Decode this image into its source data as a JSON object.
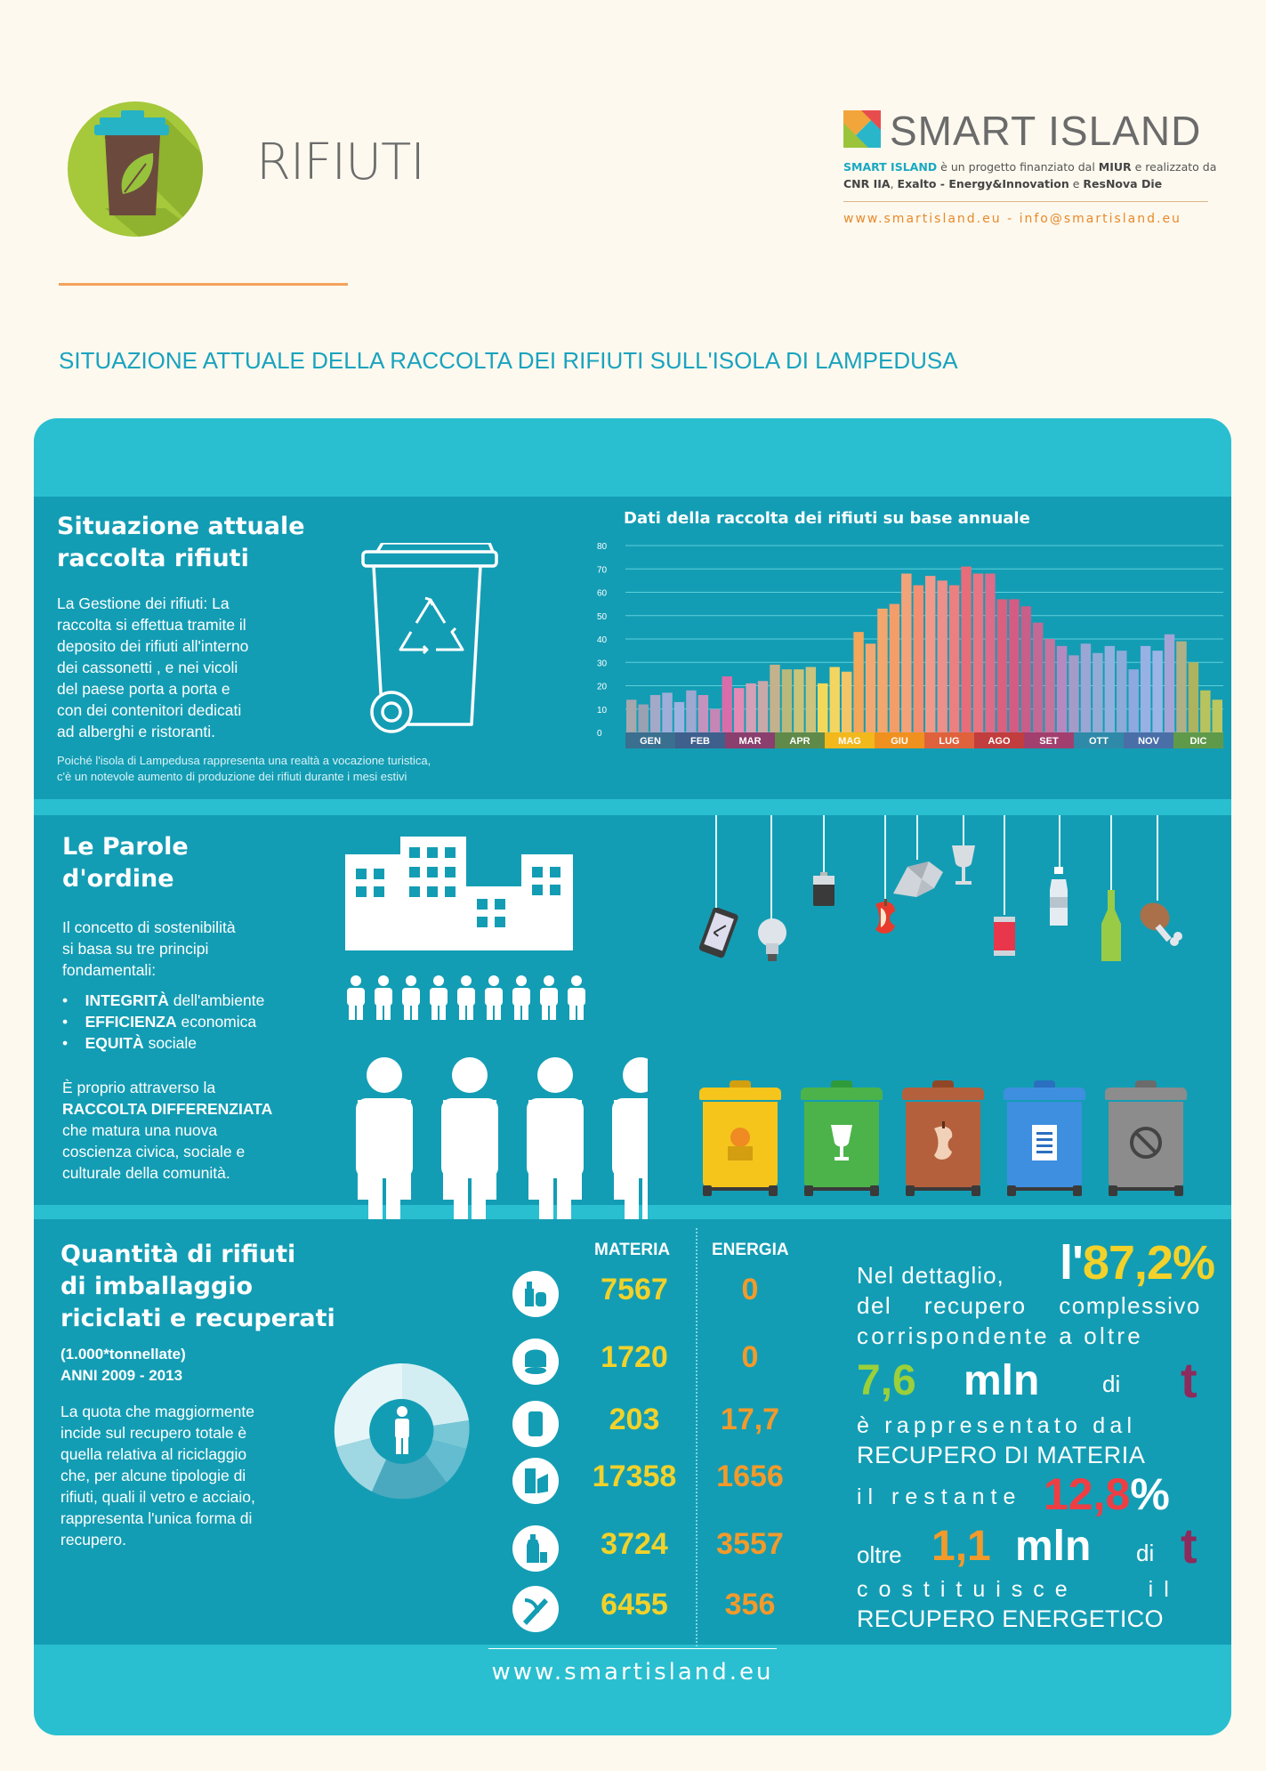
{
  "header": {
    "title": "RIFIUTI",
    "brand_name": "SMART ISLAND",
    "brand_desc_1": "SMART ISLAND",
    "brand_desc_2": " è un progetto finanziato dal ",
    "brand_desc_3": "MIUR",
    "brand_desc_4": " e realizzato da",
    "brand_desc_5": "CNR IIA",
    "brand_desc_6": ", ",
    "brand_desc_7": "Exalto - Energy&Innovation",
    "brand_desc_8": " e ",
    "brand_desc_9": "ResNova Die",
    "brand_web": "www.smartisland.eu  -  info@smartisland.eu",
    "subtitle": "SITUAZIONE ATTUALE DELLA RACCOLTA DEI RIFIUTI SULL'ISOLA DI LAMPEDUSA"
  },
  "section1": {
    "title_1": "Situazione attuale",
    "title_2": "raccolta rifiuti",
    "para": [
      "La Gestione dei rifiuti: La",
      "raccolta si effettua tramite il",
      "deposito dei rifiuti all'interno",
      "dei cassonetti , e nei vicoli",
      "del paese porta a porta e",
      "con dei contenitori dedicati",
      "ad alberghi e ristoranti."
    ],
    "note_1": "Poiché l'isola di Lampedusa rappresenta una realtà a vocazione turistica,",
    "note_2": "c'è un notevole aumento di produzione dei rifiuti durante i mesi estivi"
  },
  "chart_data": {
    "type": "bar",
    "title": "Dati della raccolta dei rifiuti su base annuale",
    "ylim": [
      0,
      80
    ],
    "yticks": [
      "0",
      "10",
      "20",
      "30",
      "40",
      "50",
      "60",
      "70",
      "80"
    ],
    "months": [
      "GEN",
      "FEB",
      "MAR",
      "APR",
      "MAG",
      "GIU",
      "LUG",
      "AGO",
      "SET",
      "OTT",
      "NOV",
      "DIC"
    ],
    "month_colors": [
      "#3a6f8f",
      "#3f5f8c",
      "#8a3f6e",
      "#5f8a4a",
      "#f2b81c",
      "#f0901f",
      "#e0623c",
      "#c23d3d",
      "#a23f6e",
      "#2e8aa8",
      "#4a6fa8",
      "#5f9a4a"
    ],
    "values": [
      14,
      12,
      16,
      17,
      13,
      18,
      16,
      10,
      24,
      19,
      21,
      22,
      29,
      27,
      27,
      28,
      21,
      28,
      26,
      43,
      38,
      53,
      55,
      68,
      63,
      67,
      65,
      63,
      71,
      68,
      68,
      57,
      57,
      54,
      47,
      40,
      37,
      33,
      38,
      34,
      37,
      35,
      27,
      37,
      35,
      42,
      39,
      30,
      18,
      14
    ],
    "bar_colors": [
      "#a7a7ae",
      "#9aa1b3",
      "#a4a9c8",
      "#9eaed8",
      "#9fb3e0",
      "#9ea8d0",
      "#c493bd",
      "#c586b5",
      "#d86da9",
      "#e48ab5",
      "#d3a1b6",
      "#c9a8a8",
      "#c4b28c",
      "#b8b97a",
      "#c9c47a",
      "#ccc37d",
      "#f3d85a",
      "#f4d561",
      "#f2c569",
      "#f3a75a",
      "#f2a870",
      "#f4a76d",
      "#f39d6b",
      "#f3a37a",
      "#f48f72",
      "#f19a8a",
      "#ed8f8a",
      "#ec7f80",
      "#e86d7a",
      "#e87584",
      "#dd6b8a",
      "#d9617f",
      "#d45c84",
      "#c75f8a",
      "#c46895",
      "#c6739e",
      "#b58ac1",
      "#a49bc9",
      "#9aa6d3",
      "#93acd6",
      "#91b0dd",
      "#8cabd8",
      "#8da9e0",
      "#97b1e5",
      "#9ab5e6",
      "#a3a5d6",
      "#b0b088",
      "#adb35e",
      "#b9c35e",
      "#bcc75f"
    ]
  },
  "section2": {
    "title_1": "Le Parole",
    "title_2": "d'ordine",
    "intro": [
      "Il concetto di sostenibilità",
      "si basa su tre principi",
      "fondamentali:"
    ],
    "bullets": [
      {
        "bold": "INTEGRITÀ",
        "rest": " dell'ambiente"
      },
      {
        "bold": "EFFICIENZA",
        "rest": " economica"
      },
      {
        "bold": "EQUITÀ",
        "rest": " sociale"
      }
    ],
    "outro_1": "È proprio attraverso la",
    "outro_2": "RACCOLTA DIFFERENZIATA",
    "outro_3": "che matura una nuova",
    "outro_4": "coscienza civica, sociale e",
    "outro_5": "culturale della comunità."
  },
  "section3": {
    "title_1": "Quantità di rifiuti",
    "title_2": "di imballaggio",
    "title_3": "riciclati e recuperati",
    "units": "(1.000*tonnellate)",
    "years": "ANNI 2009 - 2013",
    "para": [
      "La quota che maggiormente",
      "incide sul recupero totale è",
      "quella relativa al riciclaggio",
      "che, per alcune tipologie di",
      "rifiuti, quali il vetro e acciaio,",
      "rappresenta l'unica forma di",
      "recupero."
    ],
    "col_materia": "MATERIA",
    "col_energia": "ENERGIA",
    "rows": [
      {
        "materia": "7567",
        "energia": "0"
      },
      {
        "materia": "1720",
        "energia": "0"
      },
      {
        "materia": "203",
        "energia": "17,7"
      },
      {
        "materia": "17358",
        "energia": "1656"
      },
      {
        "materia": "3724",
        "energia": "3557"
      },
      {
        "materia": "6455",
        "energia": "356"
      }
    ],
    "detail": {
      "l1a": "Nel dettaglio,",
      "l1b": "l'",
      "l1c": "87,2%",
      "l2": "del recupero complessivo",
      "l3": "corrispondente a oltre",
      "l4a": "7,6",
      "l4b": "mln",
      "l4c": "di",
      "l4d": "t",
      "l5": "è rappresentato dal",
      "l6": "RECUPERO DI MATERIA",
      "l7a": "il restante",
      "l7b": "12,8",
      "l7c": "%",
      "l8a": "oltre",
      "l8b": "1,1",
      "l8c": "mln",
      "l8d": "di",
      "l8e": "t",
      "l9": "costituisce il",
      "l10": "RECUPERO ENERGETICO"
    }
  },
  "footer": {
    "url": "www.smartisland.eu"
  }
}
